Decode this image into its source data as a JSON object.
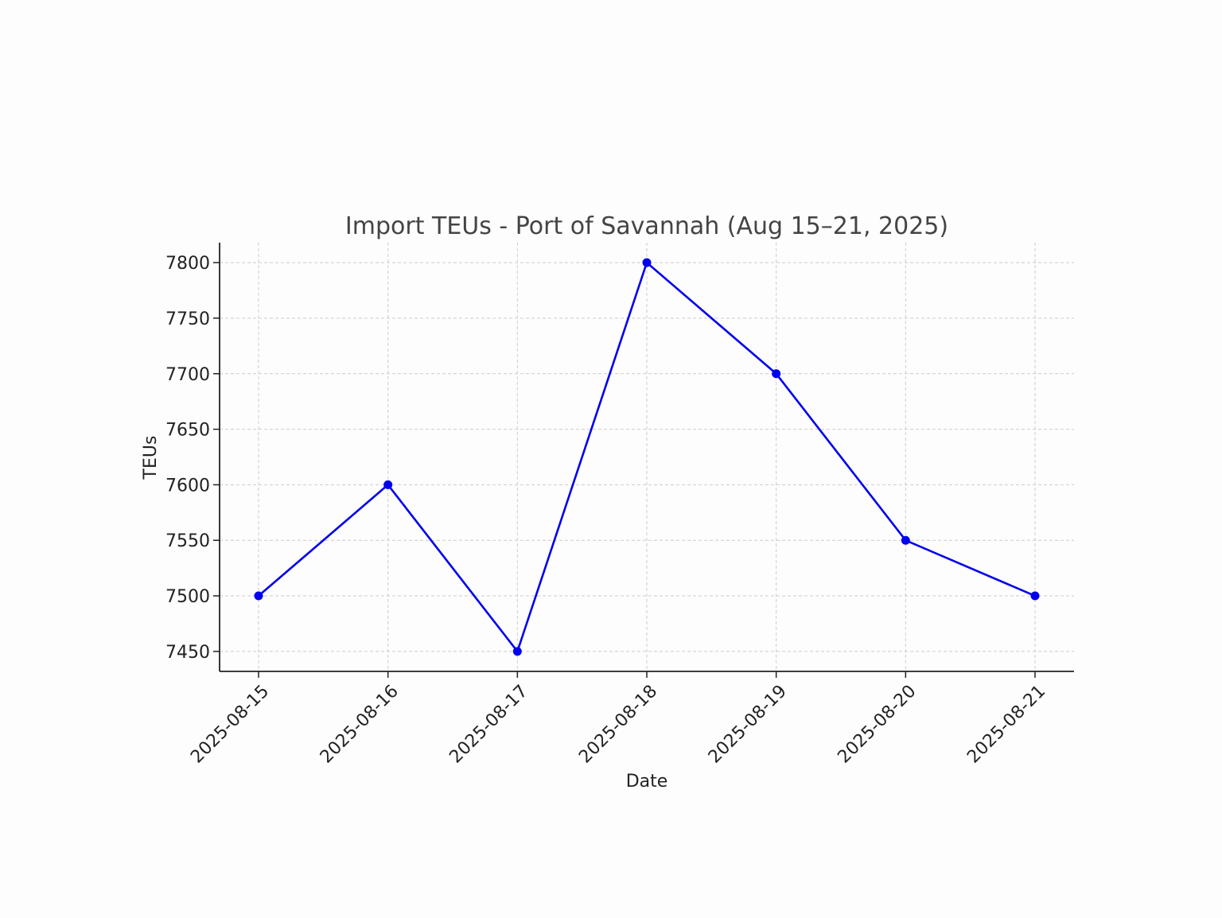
{
  "chart_data": {
    "type": "line",
    "title": "Import TEUs - Port of Savannah (Aug 15–21, 2025)",
    "xlabel": "Date",
    "ylabel": "TEUs",
    "categories": [
      "2025-08-15",
      "2025-08-16",
      "2025-08-17",
      "2025-08-18",
      "2025-08-19",
      "2025-08-20",
      "2025-08-21"
    ],
    "series": [
      {
        "values": [
          7500,
          7600,
          7450,
          7800,
          7700,
          7550,
          7500
        ]
      }
    ],
    "ylim": [
      7432,
      7818
    ],
    "yticks": [
      7450,
      7500,
      7550,
      7600,
      7650,
      7700,
      7750,
      7800
    ],
    "grid": true,
    "legend": "none",
    "colors": {
      "line": "#0000ee",
      "marker": "#0000ee",
      "grid": "#cccccc",
      "axis": "#222222",
      "text": "#222222",
      "title": "#444444"
    }
  }
}
